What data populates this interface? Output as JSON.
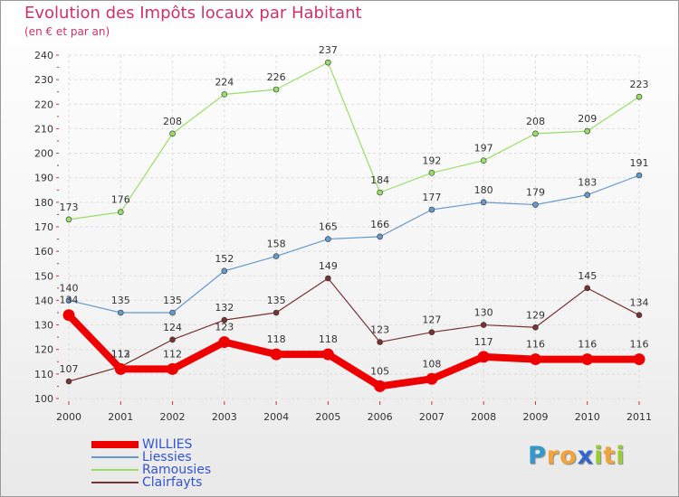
{
  "title": "Evolution des Impôts locaux par Habitant",
  "subtitle": "(en € et par an)",
  "logo": {
    "letters": [
      "P",
      "r",
      "o",
      "x",
      "i",
      "t",
      "i"
    ],
    "colors": [
      "#3399cc",
      "#f2a43a",
      "#f2a43a",
      "#3366cc",
      "#99cc33",
      "#f2a43a",
      "#99cc33"
    ]
  },
  "chart_data": {
    "type": "line",
    "title": "Evolution des Impôts locaux par Habitant",
    "subtitle": "(en € et par an)",
    "xlabel": "",
    "ylabel": "",
    "categories": [
      "2000",
      "2001",
      "2002",
      "2003",
      "2004",
      "2005",
      "2006",
      "2007",
      "2008",
      "2009",
      "2010",
      "2011"
    ],
    "ylim": [
      100,
      240
    ],
    "yticks": [
      "100",
      "110",
      "120",
      "130",
      "140",
      "150",
      "160",
      "170",
      "180",
      "190",
      "200",
      "210",
      "220",
      "230",
      "240"
    ],
    "grid": true,
    "legend_position": "bottom-left",
    "series": [
      {
        "name": "Ramousies",
        "color": "#99dd66",
        "values": [
          173,
          176,
          208,
          224,
          226,
          237,
          184,
          192,
          197,
          208,
          209,
          223
        ]
      },
      {
        "name": "Liessies",
        "color": "#6699cc",
        "values": [
          140,
          135,
          135,
          152,
          158,
          165,
          166,
          177,
          180,
          179,
          183,
          191
        ]
      },
      {
        "name": "Clairfayts",
        "color": "#773333",
        "values": [
          107,
          113,
          124,
          132,
          135,
          149,
          123,
          127,
          130,
          129,
          145,
          134
        ]
      },
      {
        "name": "WILLIES",
        "color": "#ee0000",
        "values": [
          134,
          112,
          112,
          123,
          118,
          118,
          105,
          108,
          117,
          116,
          116,
          116
        ]
      }
    ],
    "legend": [
      "WILLIES",
      "Liessies",
      "Ramousies",
      "Clairfayts"
    ]
  }
}
